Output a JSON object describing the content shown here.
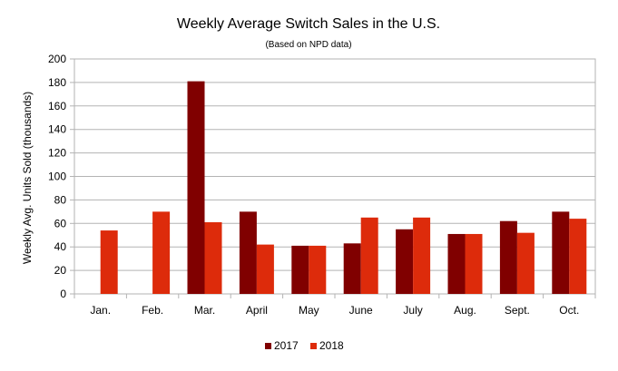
{
  "chart_data": {
    "type": "bar",
    "title": "Weekly Average Switch Sales in the U.S.",
    "subtitle": "(Based on NPD data)",
    "xlabel": "",
    "ylabel": "Weekly Avg. Units Sold (thousands)",
    "ylim": [
      0,
      200
    ],
    "yticks": [
      0,
      20,
      40,
      60,
      80,
      100,
      120,
      140,
      160,
      180,
      200
    ],
    "grid": true,
    "legend_position": "bottom",
    "categories": [
      "Jan.",
      "Feb.",
      "Mar.",
      "April",
      "May",
      "June",
      "July",
      "Aug.",
      "Sept.",
      "Oct."
    ],
    "series": [
      {
        "name": "2017",
        "color": "#800000",
        "values": [
          null,
          null,
          181,
          70,
          41,
          43,
          55,
          51,
          62,
          70
        ]
      },
      {
        "name": "2018",
        "color": "#dd2b0b",
        "values": [
          54,
          70,
          61,
          42,
          41,
          65,
          65,
          51,
          52,
          64
        ]
      }
    ]
  }
}
